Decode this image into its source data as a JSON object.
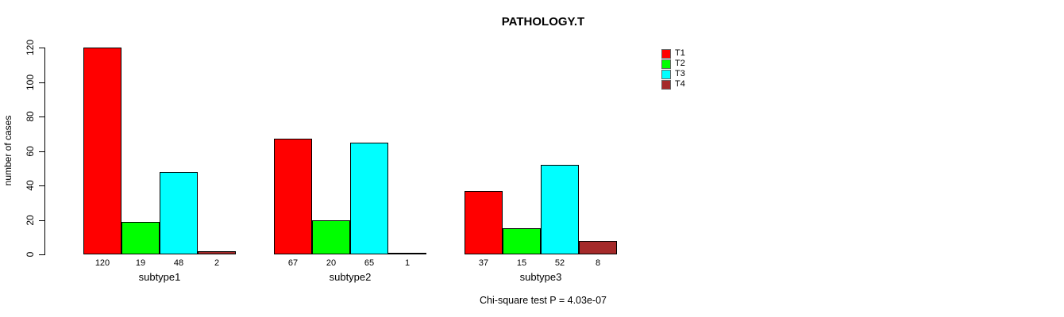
{
  "title": "PATHOLOGY.T",
  "ylabel": "number of cases",
  "footer": "Chi-square test P = 4.03e-07",
  "chart_data": {
    "type": "bar",
    "title": "PATHOLOGY.T",
    "xlabel": "",
    "ylabel": "number of cases",
    "categories": [
      "subtype1",
      "subtype2",
      "subtype3"
    ],
    "series": [
      {
        "name": "T1",
        "color": "#ff0000",
        "values": [
          120,
          67,
          37
        ]
      },
      {
        "name": "T2",
        "color": "#00ff00",
        "values": [
          19,
          20,
          15
        ]
      },
      {
        "name": "T3",
        "color": "#00ffff",
        "values": [
          48,
          65,
          52
        ]
      },
      {
        "name": "T4",
        "color": "#a52a2a",
        "values": [
          2,
          1,
          8
        ]
      }
    ],
    "ylim": [
      0,
      120
    ],
    "yticks": [
      0,
      20,
      40,
      60,
      80,
      100,
      120
    ],
    "grid": false,
    "legend_position": "right",
    "bar_value_labels": true,
    "annotation": "Chi-square test P = 4.03e-07"
  }
}
